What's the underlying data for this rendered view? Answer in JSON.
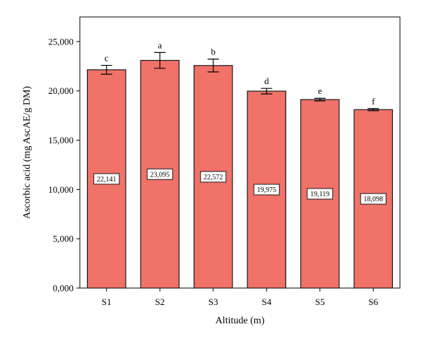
{
  "colors": {
    "bar_fill": "#f07268",
    "bar_stroke": "#1a1a1a",
    "axis": "#000000",
    "label_box_fill": "#ffffff"
  },
  "chart_data": {
    "type": "bar",
    "title": "",
    "xlabel": "Altitude (m)",
    "ylabel": "Ascorbic acid (mg AscAE/g DM)",
    "categories": [
      "S1",
      "S2",
      "S3",
      "S4",
      "S5",
      "S6"
    ],
    "values": [
      22141,
      23095,
      22572,
      19975,
      19119,
      18098
    ],
    "value_labels": [
      "22,141",
      "23,095",
      "22,572",
      "19,975",
      "19,119",
      "18,098"
    ],
    "error": [
      450,
      800,
      650,
      280,
      130,
      110
    ],
    "significance_letters": [
      "c",
      "a",
      "b",
      "d",
      "e",
      "f"
    ],
    "ylim": [
      0,
      27500
    ],
    "yticks": [
      0,
      5000,
      10000,
      15000,
      20000,
      25000
    ],
    "ytick_labels": [
      "0,000",
      "5,000",
      "10,000",
      "15,000",
      "20,000",
      "25,000"
    ],
    "grid": false,
    "legend": "none"
  }
}
